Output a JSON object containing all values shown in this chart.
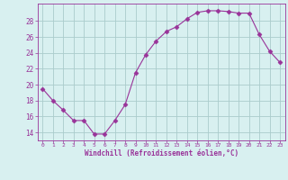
{
  "x": [
    0,
    1,
    2,
    3,
    4,
    5,
    6,
    7,
    8,
    9,
    10,
    11,
    12,
    13,
    14,
    15,
    16,
    17,
    18,
    19,
    20,
    21,
    22,
    23
  ],
  "y": [
    19.5,
    18.0,
    16.8,
    15.5,
    15.5,
    13.8,
    13.8,
    15.5,
    17.5,
    21.5,
    23.8,
    25.5,
    26.7,
    27.3,
    28.3,
    29.1,
    29.3,
    29.3,
    29.2,
    29.0,
    29.0,
    26.3,
    24.2,
    22.8
  ],
  "line_color": "#993399",
  "marker": "D",
  "marker_size": 2.5,
  "bg_color": "#d8f0f0",
  "grid_color": "#aacccc",
  "xlabel": "Windchill (Refroidissement éolien,°C)",
  "xlabel_color": "#993399",
  "tick_color": "#993399",
  "yticks": [
    14,
    16,
    18,
    20,
    22,
    24,
    26,
    28
  ],
  "xlim": [
    -0.5,
    23.5
  ],
  "ylim": [
    13.0,
    30.2
  ]
}
